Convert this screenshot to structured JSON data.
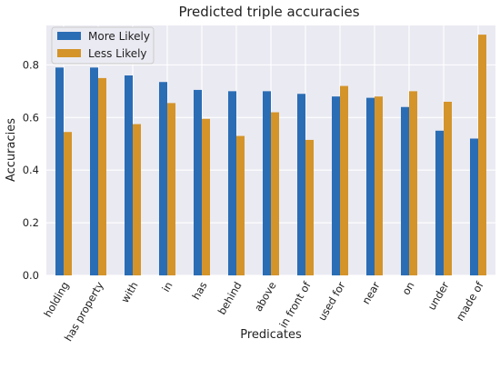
{
  "chart_data": {
    "type": "bar",
    "title": "Predicted triple accuracies",
    "xlabel": "Predicates",
    "ylabel": "Accuracies",
    "ylim": [
      0,
      0.95
    ],
    "yticks": [
      "0.0",
      "0.2",
      "0.4",
      "0.6",
      "0.8"
    ],
    "grid": true,
    "legend_position": "top-left",
    "categories": [
      "holding",
      "has property",
      "with",
      "in",
      "has",
      "behind",
      "above",
      "in front of",
      "used for",
      "near",
      "on",
      "under",
      "made of"
    ],
    "series": [
      {
        "name": "More Likely",
        "color": "#2a6db5",
        "values": [
          0.79,
          0.79,
          0.76,
          0.735,
          0.705,
          0.7,
          0.7,
          0.69,
          0.68,
          0.675,
          0.64,
          0.55,
          0.52
        ]
      },
      {
        "name": "Less Likely",
        "color": "#d4942a",
        "values": [
          0.545,
          0.75,
          0.575,
          0.655,
          0.595,
          0.53,
          0.62,
          0.515,
          0.72,
          0.68,
          0.7,
          0.66,
          0.915
        ]
      }
    ],
    "background": "#eaeaf2"
  }
}
